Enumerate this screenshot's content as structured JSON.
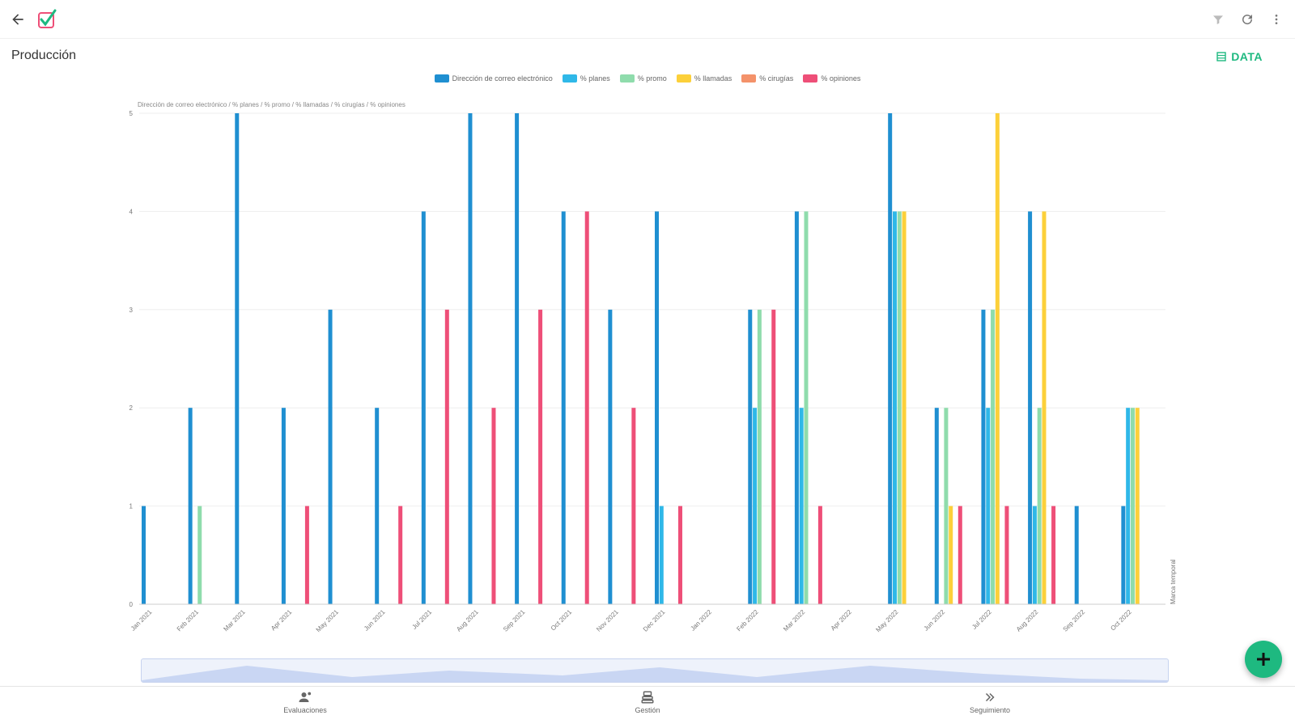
{
  "header": {
    "back_icon": "arrow-left-icon",
    "logo_icon": "checkmark-logo-icon",
    "actions": [
      "filter-icon",
      "refresh-icon",
      "more-vert-icon"
    ]
  },
  "page": {
    "title": "Producción",
    "data_button": "DATA"
  },
  "colors": {
    "accent": "#1eb980",
    "series": [
      "#1f8fd1",
      "#2fb8e8",
      "#8fdcac",
      "#fcd03a",
      "#f4926a",
      "#ee4f78"
    ]
  },
  "chart_data": {
    "type": "bar",
    "title": "Dirección de correo electrónico / % planes / % promo / % llamadas / % cirugías / % opiniones",
    "xlabel": "Marca temporal",
    "ylabel": "",
    "ylim": [
      0,
      5
    ],
    "yticks": [
      "0",
      "1",
      "2",
      "3",
      "4",
      "5"
    ],
    "legend_position": "top",
    "categories": [
      "Jan 2021",
      "Feb 2021",
      "Mar 2021",
      "Apr 2021",
      "May 2021",
      "Jun 2021",
      "Jul 2021",
      "Aug 2021",
      "Sep 2021",
      "Oct 2021",
      "Nov 2021",
      "Dec 2021",
      "Jan 2022",
      "Feb 2022",
      "Mar 2022",
      "Apr 2022",
      "May 2022",
      "Jun 2022",
      "Jul 2022",
      "Aug 2022",
      "Sep 2022",
      "Oct 2022"
    ],
    "series": [
      {
        "name": "Dirección de correo electrónico",
        "values": [
          1,
          2,
          5,
          2,
          3,
          2,
          4,
          5,
          5,
          4,
          3,
          4,
          0,
          3,
          4,
          0,
          5,
          2,
          3,
          4,
          1,
          1
        ]
      },
      {
        "name": "% planes",
        "values": [
          0,
          0,
          0,
          0,
          0,
          0,
          0,
          0,
          0,
          0,
          0,
          1,
          0,
          2,
          2,
          0,
          4,
          0,
          2,
          1,
          0,
          2
        ]
      },
      {
        "name": "% promo",
        "values": [
          0,
          1,
          0,
          0,
          0,
          0,
          0,
          0,
          0,
          0,
          0,
          0,
          0,
          3,
          4,
          0,
          4,
          2,
          3,
          2,
          0,
          2
        ]
      },
      {
        "name": "% llamadas",
        "values": [
          0,
          0,
          0,
          0,
          0,
          0,
          0,
          0,
          0,
          0,
          0,
          0,
          0,
          0,
          0,
          0,
          4,
          1,
          5,
          4,
          0,
          2
        ]
      },
      {
        "name": "% cirugías",
        "values": [
          0,
          0,
          0,
          0,
          0,
          0,
          0,
          0,
          0,
          0,
          0,
          0,
          0,
          0,
          0,
          0,
          0,
          0,
          0,
          0,
          0,
          0
        ]
      },
      {
        "name": "% opiniones",
        "values": [
          0,
          0,
          0,
          1,
          0,
          1,
          3,
          2,
          3,
          4,
          2,
          1,
          0,
          3,
          1,
          0,
          0,
          1,
          1,
          1,
          0,
          0
        ]
      }
    ]
  },
  "zoom": {
    "icon": "range-slider-icon"
  },
  "fab": {
    "icon": "plus-icon"
  },
  "bottom_nav": [
    {
      "label": "Evaluaciones",
      "icon": "people-icon"
    },
    {
      "label": "Gestión",
      "icon": "stack-icon"
    },
    {
      "label": "Seguimiento",
      "icon": "chevrons-icon"
    }
  ]
}
